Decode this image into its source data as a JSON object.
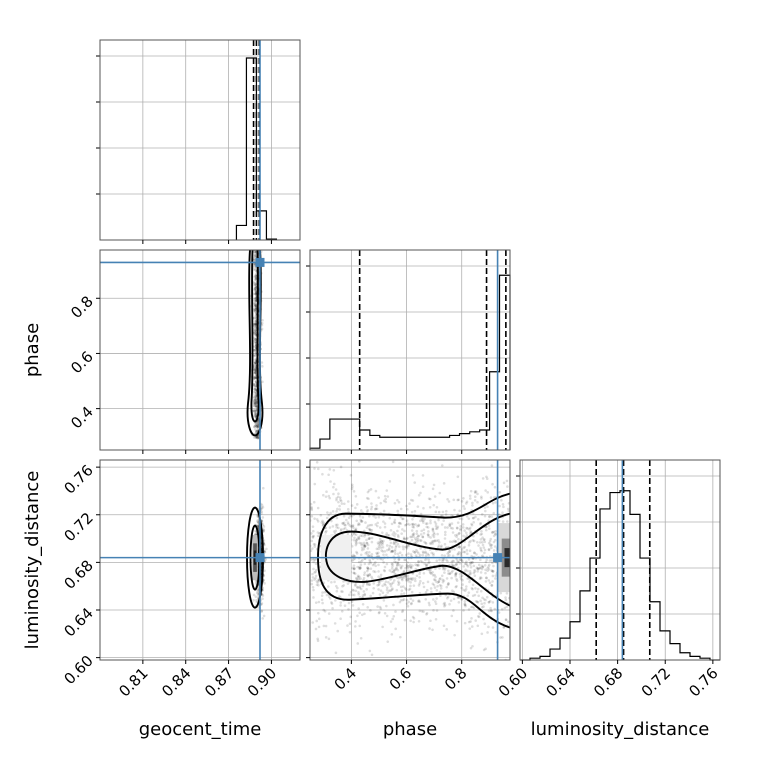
{
  "chart_data": {
    "type": "corner",
    "parameters": [
      "geocent_time",
      "phase",
      "luminosity_distance"
    ],
    "axis_labels": {
      "geocent_time": "geocent_time",
      "phase": "phase",
      "luminosity_distance": "luminosity_distance"
    },
    "ranges": {
      "geocent_time": [
        0.78,
        0.92
      ],
      "phase": [
        0.25,
        0.975
      ],
      "luminosity_distance": [
        0.598,
        0.766
      ]
    },
    "ticks": {
      "geocent_time": [
        "0.81",
        "0.84",
        "0.87",
        "0.90"
      ],
      "phase": [
        "0.4",
        "0.6",
        "0.8"
      ],
      "luminosity_distance": [
        "0.60",
        "0.64",
        "0.68",
        "0.72",
        "0.76"
      ]
    },
    "truths": {
      "geocent_time": 0.892,
      "phase": 0.93,
      "luminosity_distance": 0.684
    },
    "truth_color": "#4682b4",
    "quantile_lines": {
      "geocent_time": [
        0.8875,
        0.8895,
        0.8915
      ],
      "phase": [
        0.43,
        0.89,
        0.96
      ],
      "luminosity_distance": [
        0.662,
        0.685,
        0.707
      ]
    },
    "histograms": {
      "geocent_time": {
        "edges": [
          0.8755,
          0.8825,
          0.8895,
          0.8965,
          0.9035
        ],
        "counts": [
          0.08,
          1.0,
          0.16,
          0.005
        ]
      },
      "phase": {
        "edges": [
          0.25,
          0.286,
          0.322,
          0.358,
          0.394,
          0.43,
          0.467,
          0.503,
          0.539,
          0.575,
          0.612,
          0.648,
          0.684,
          0.72,
          0.756,
          0.792,
          0.829,
          0.865,
          0.901,
          0.937,
          0.975
        ],
        "counts": [
          0.01,
          0.06,
          0.17,
          0.17,
          0.17,
          0.11,
          0.08,
          0.07,
          0.07,
          0.07,
          0.07,
          0.07,
          0.07,
          0.07,
          0.08,
          0.09,
          0.1,
          0.11,
          0.43,
          0.96
        ]
      },
      "luminosity_distance": {
        "edges": [
          0.598,
          0.6064,
          0.6148,
          0.6232,
          0.6316,
          0.64,
          0.6484,
          0.6568,
          0.6652,
          0.6736,
          0.682,
          0.6904,
          0.6988,
          0.7072,
          0.7156,
          0.724,
          0.7324,
          0.7408,
          0.7492,
          0.7576,
          0.766
        ],
        "counts": [
          0.0,
          0.01,
          0.02,
          0.06,
          0.12,
          0.21,
          0.38,
          0.56,
          0.83,
          0.92,
          0.93,
          0.8,
          0.56,
          0.32,
          0.16,
          0.09,
          0.04,
          0.02,
          0.01,
          0.0
        ]
      }
    },
    "grid": true
  }
}
